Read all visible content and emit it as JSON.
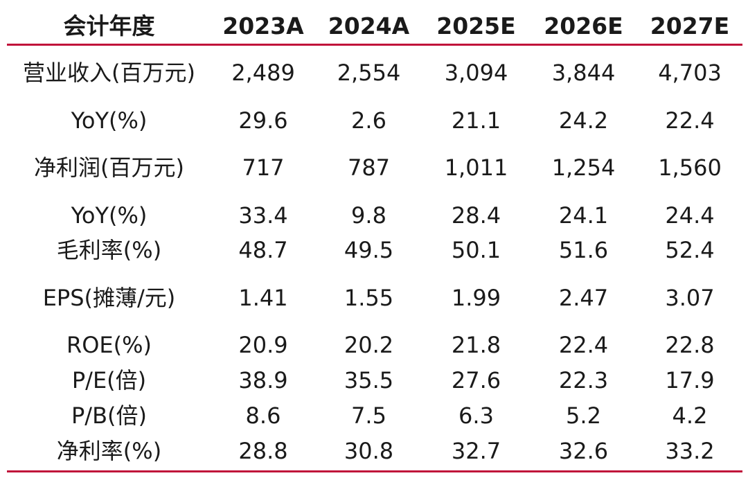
{
  "table": {
    "headers": [
      "会计年度",
      "2023A",
      "2024A",
      "2025E",
      "2026E",
      "2027E"
    ],
    "rows": [
      {
        "label": "营业收入(百万元)",
        "values": [
          "2,489",
          "2,554",
          "3,094",
          "3,844",
          "4,703"
        ]
      },
      {
        "label": "YoY(%)",
        "values": [
          "29.6",
          "2.6",
          "21.1",
          "24.2",
          "22.4"
        ]
      },
      {
        "label": "净利润(百万元)",
        "values": [
          "717",
          "787",
          "1,011",
          "1,254",
          "1,560"
        ]
      },
      {
        "label": "YoY(%)",
        "values": [
          "33.4",
          "9.8",
          "28.4",
          "24.1",
          "24.4"
        ]
      },
      {
        "label": "毛利率(%)",
        "values": [
          "48.7",
          "49.5",
          "50.1",
          "51.6",
          "52.4"
        ]
      },
      {
        "label": "EPS(摊薄/元)",
        "values": [
          "1.41",
          "1.55",
          "1.99",
          "2.47",
          "3.07"
        ]
      },
      {
        "label": "ROE(%)",
        "values": [
          "20.9",
          "20.2",
          "21.8",
          "22.4",
          "22.8"
        ]
      },
      {
        "label": "P/E(倍)",
        "values": [
          "38.9",
          "35.5",
          "27.6",
          "22.3",
          "17.9"
        ]
      },
      {
        "label": "P/B(倍)",
        "values": [
          "8.6",
          "7.5",
          "6.3",
          "5.2",
          "4.2"
        ]
      },
      {
        "label": "净利率(%)",
        "values": [
          "28.8",
          "30.8",
          "32.7",
          "32.6",
          "33.2"
        ]
      }
    ]
  },
  "colors": {
    "rule": "#c0103a",
    "text": "#1a1a1a"
  }
}
